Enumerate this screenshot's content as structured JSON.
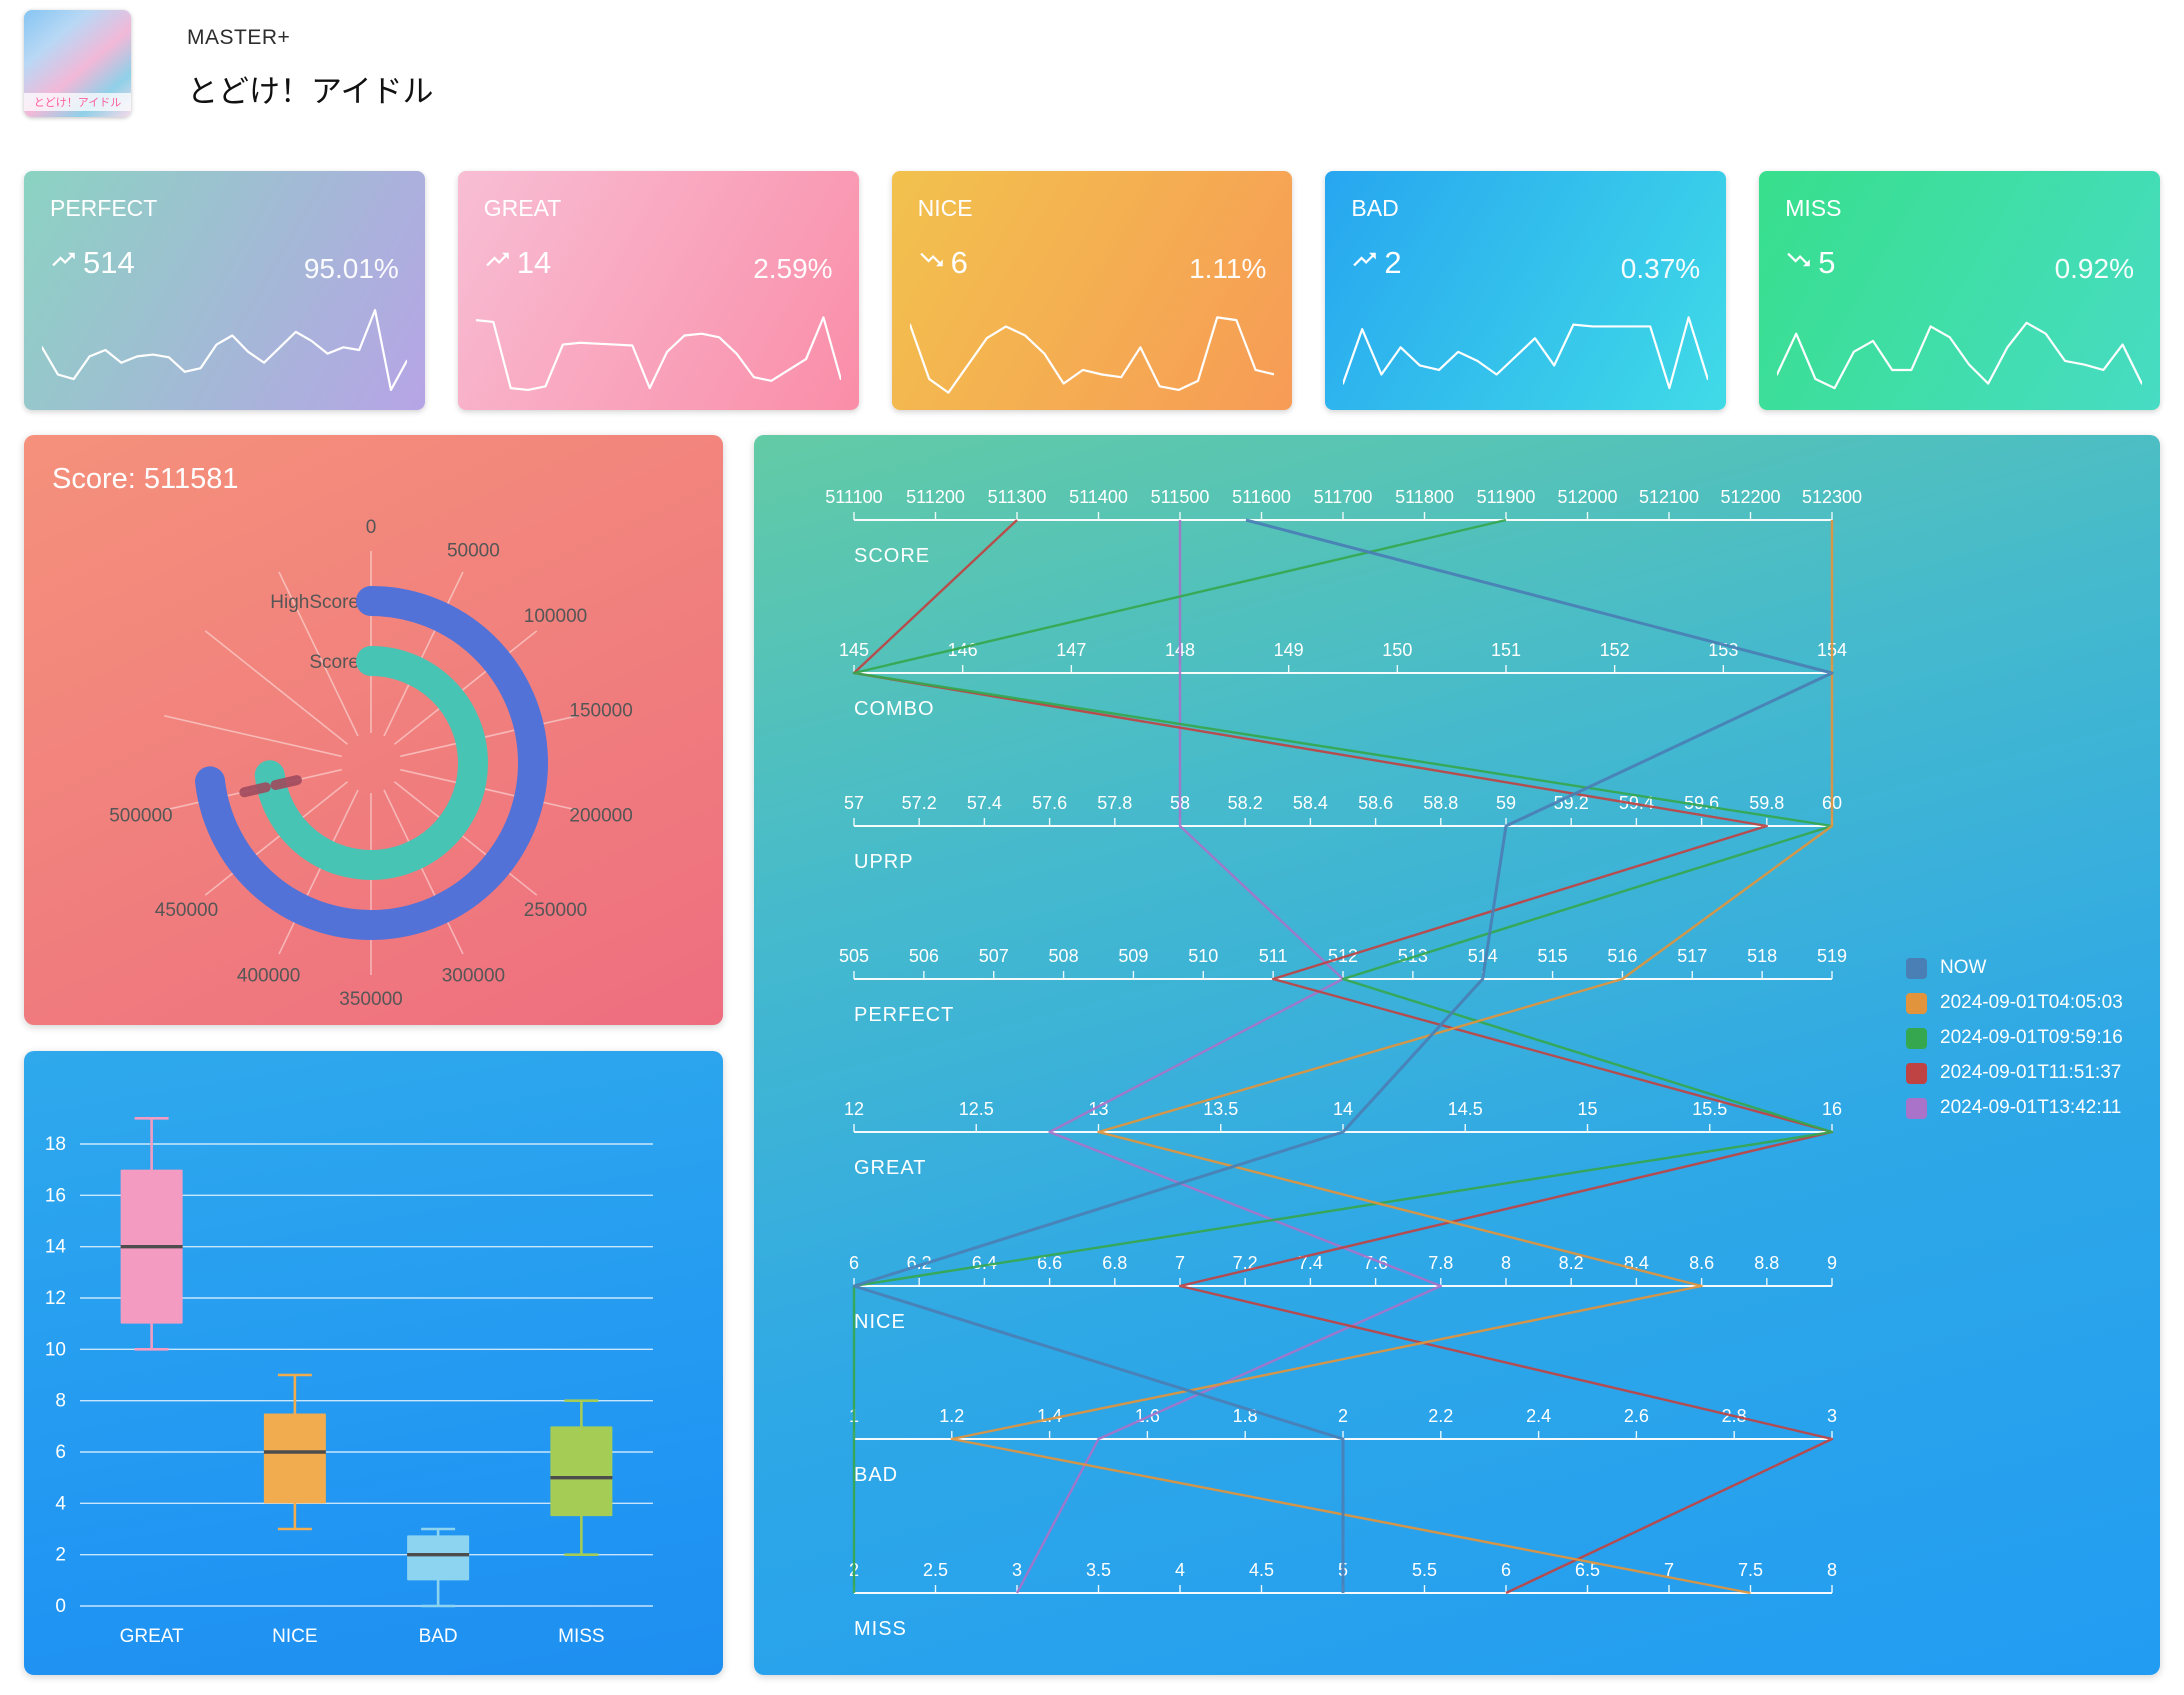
{
  "header": {
    "difficulty": "MASTER+",
    "song_title": "とどけ！アイドル",
    "art_caption": "とどけ！アイドル"
  },
  "cards": [
    {
      "label": "PERFECT",
      "count": "514",
      "percent": "95.01%",
      "trend": "up",
      "gradient": [
        "#8bd3c2",
        "#b7a4e6"
      ],
      "spark": [
        55,
        25,
        20,
        45,
        52,
        38,
        45,
        47,
        44,
        28,
        32,
        58,
        68,
        50,
        38,
        55,
        72,
        62,
        48,
        55,
        52,
        96,
        8,
        40
      ]
    },
    {
      "label": "GREAT",
      "count": "14",
      "percent": "2.59%",
      "trend": "up",
      "gradient": [
        "#f8bed4",
        "#fa8da8"
      ],
      "spark": [
        85,
        83,
        10,
        8,
        12,
        58,
        60,
        59,
        58,
        57,
        10,
        50,
        68,
        70,
        66,
        48,
        22,
        18,
        30,
        42,
        88,
        20
      ]
    },
    {
      "label": "NICE",
      "count": "6",
      "percent": "1.11%",
      "trend": "down",
      "gradient": [
        "#f2c24d",
        "#f79b56"
      ],
      "spark": [
        80,
        20,
        5,
        35,
        65,
        78,
        68,
        48,
        15,
        30,
        25,
        22,
        55,
        12,
        8,
        18,
        88,
        85,
        30,
        25
      ]
    },
    {
      "label": "BAD",
      "count": "2",
      "percent": "0.37%",
      "trend": "up",
      "gradient": [
        "#27a6f0",
        "#40dbe7"
      ],
      "spark": [
        15,
        75,
        25,
        55,
        35,
        30,
        50,
        40,
        25,
        45,
        65,
        35,
        80,
        78,
        78,
        78,
        78,
        10,
        88,
        20
      ]
    },
    {
      "label": "MISS",
      "count": "5",
      "percent": "0.92%",
      "trend": "down",
      "gradient": [
        "#38df8b",
        "#47dcc4"
      ],
      "spark": [
        25,
        70,
        20,
        10,
        50,
        62,
        30,
        30,
        78,
        66,
        36,
        15,
        55,
        82,
        70,
        40,
        36,
        30,
        58,
        15
      ]
    }
  ],
  "score_panel": {
    "title": "Score: 511581"
  },
  "chart_data": [
    {
      "id": "score-radial",
      "type": "radial-bar",
      "title": "Score: 511581",
      "categories": [
        "HighScore",
        "Score"
      ],
      "angle_labels": [
        "0",
        "50000",
        "100000",
        "150000",
        "200000",
        "250000",
        "300000",
        "350000",
        "400000",
        "450000",
        "500000"
      ],
      "angle_max": 700000,
      "series": [
        {
          "name": "HighScore",
          "value": 512300,
          "color": "#5272d8"
        },
        {
          "name": "Score",
          "value": 511581,
          "color": "#47c4b3"
        }
      ]
    },
    {
      "id": "judge-boxplot",
      "type": "boxplot",
      "categories": [
        "GREAT",
        "NICE",
        "BAD",
        "MISS"
      ],
      "y_ticks": [
        0,
        2,
        4,
        6,
        8,
        10,
        12,
        14,
        16,
        18
      ],
      "ylim": [
        0,
        19.8
      ],
      "boxes": [
        {
          "category": "GREAT",
          "min": 10,
          "q1": 11,
          "median": 14,
          "q3": 17,
          "max": 19,
          "color": "#f49bc1"
        },
        {
          "category": "NICE",
          "min": 3,
          "q1": 4,
          "median": 6,
          "q3": 7.5,
          "max": 9,
          "color": "#f0ac4e"
        },
        {
          "category": "BAD",
          "min": 0,
          "q1": 1,
          "median": 2,
          "q3": 2.75,
          "max": 3,
          "color": "#8dd4f0"
        },
        {
          "category": "MISS",
          "min": 2,
          "q1": 3.5,
          "median": 5,
          "q3": 7,
          "max": 8,
          "color": "#a5cc55"
        }
      ]
    },
    {
      "id": "history-parallel",
      "type": "parallel",
      "axes": [
        {
          "name": "SCORE",
          "min": 511100,
          "max": 512300,
          "ticks": [
            "511100",
            "511200",
            "511300",
            "511400",
            "511500",
            "511600",
            "511700",
            "511800",
            "511900",
            "512000",
            "512100",
            "512200",
            "512300"
          ]
        },
        {
          "name": "COMBO",
          "min": 145,
          "max": 154,
          "ticks": [
            "145",
            "146",
            "147",
            "148",
            "149",
            "150",
            "151",
            "152",
            "153",
            "154"
          ]
        },
        {
          "name": "UPRP",
          "min": 57,
          "max": 60,
          "ticks": [
            "57",
            "57.2",
            "57.4",
            "57.6",
            "57.8",
            "58",
            "58.2",
            "58.4",
            "58.6",
            "58.8",
            "59",
            "59.2",
            "59.4",
            "59.6",
            "59.8",
            "60"
          ]
        },
        {
          "name": "PERFECT",
          "min": 505,
          "max": 519,
          "ticks": [
            "505",
            "506",
            "507",
            "508",
            "509",
            "510",
            "511",
            "512",
            "513",
            "514",
            "515",
            "516",
            "517",
            "518",
            "519"
          ]
        },
        {
          "name": "GREAT",
          "min": 12,
          "max": 16,
          "ticks": [
            "12",
            "12.5",
            "13",
            "13.5",
            "14",
            "14.5",
            "15",
            "15.5",
            "16"
          ]
        },
        {
          "name": "NICE",
          "min": 6,
          "max": 9,
          "ticks": [
            "6",
            "6.2",
            "6.4",
            "6.6",
            "6.8",
            "7",
            "7.2",
            "7.4",
            "7.6",
            "7.8",
            "8",
            "8.2",
            "8.4",
            "8.6",
            "8.8",
            "9"
          ]
        },
        {
          "name": "BAD",
          "min": 1,
          "max": 3,
          "ticks": [
            "1",
            "1.2",
            "1.4",
            "1.6",
            "1.8",
            "2",
            "2.2",
            "2.4",
            "2.6",
            "2.8",
            "3"
          ]
        },
        {
          "name": "MISS",
          "min": 2,
          "max": 8,
          "ticks": [
            "2",
            "2.5",
            "3",
            "3.5",
            "4",
            "4.5",
            "5",
            "5.5",
            "6",
            "6.5",
            "7",
            "7.5",
            "8"
          ]
        }
      ],
      "series": [
        {
          "name": "NOW",
          "color": "#4a7fb5",
          "values": [
            511581,
            154,
            59,
            514,
            14,
            6,
            2,
            5
          ]
        },
        {
          "name": "2024-09-01T04:05:03",
          "color": "#e2943c",
          "values": [
            512300,
            154,
            60,
            516,
            13,
            8.6,
            1.2,
            7.5
          ]
        },
        {
          "name": "2024-09-01T09:59:16",
          "color": "#35a74e",
          "values": [
            511900,
            145,
            60,
            512,
            16,
            6,
            1,
            2
          ]
        },
        {
          "name": "2024-09-01T11:51:37",
          "color": "#bf4343",
          "values": [
            511300,
            145,
            59.8,
            511,
            16,
            7,
            3,
            6
          ]
        },
        {
          "name": "2024-09-01T13:42:11",
          "color": "#a873c9",
          "values": [
            511500,
            148,
            58,
            512,
            12.8,
            7.8,
            1.5,
            3
          ]
        }
      ]
    }
  ]
}
